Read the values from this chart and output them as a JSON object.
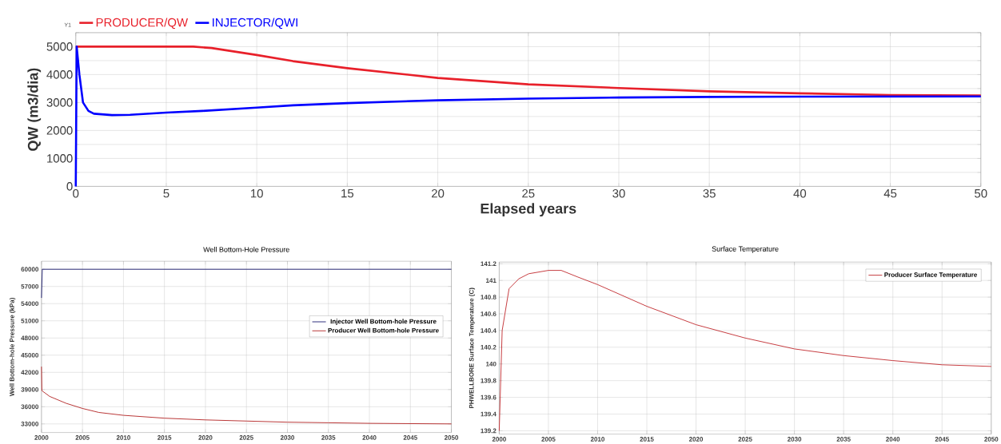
{
  "chart_data": [
    {
      "type": "line",
      "xlabel": "Elapsed years",
      "ylabel": "QW (m3/dia)",
      "annotations": [
        "Y1"
      ],
      "xlim": [
        0,
        50
      ],
      "ylim": [
        0,
        5500
      ],
      "xticks": [
        0,
        5,
        10,
        15,
        20,
        25,
        30,
        35,
        40,
        45,
        50
      ],
      "yticks": [
        0,
        {
          "value": 500,
          "label": null
        },
        1000,
        {
          "value": 1500,
          "label": null
        },
        2000,
        {
          "value": 2500,
          "label": null
        },
        3000,
        {
          "value": 3500,
          "label": null
        },
        4000,
        {
          "value": 4500,
          "label": null
        },
        5000,
        {
          "value": 5500,
          "label": null
        }
      ],
      "grid": true,
      "legend": "top left",
      "series": [
        {
          "name": "PRODUCER/QW",
          "color": "#e8202a",
          "x": [
            0,
            6.5,
            7.5,
            10,
            12,
            15,
            20,
            25,
            30,
            35,
            40,
            45,
            50
          ],
          "values": [
            5000,
            5000,
            4950,
            4700,
            4480,
            4230,
            3880,
            3650,
            3520,
            3400,
            3330,
            3270,
            3250
          ]
        },
        {
          "name": "INJECTOR/QWI",
          "color": "#0000ff",
          "x": [
            0,
            0.05,
            0.2,
            0.4,
            0.7,
            1,
            2,
            3,
            5,
            7,
            10,
            12,
            15,
            20,
            25,
            30,
            35,
            40,
            50
          ],
          "values": [
            0,
            5000,
            4000,
            3000,
            2700,
            2600,
            2550,
            2560,
            2640,
            2700,
            2820,
            2900,
            2980,
            3080,
            3140,
            3180,
            3200,
            3210,
            3220
          ]
        }
      ]
    },
    {
      "type": "line",
      "title": "Well Bottom-Hole Pressure",
      "ylabel": "Well Bottom-hole Pressure (kPa)",
      "xlim": [
        2000,
        2050
      ],
      "ylim": [
        31500,
        61400
      ],
      "xticks": [
        2000,
        2005,
        2010,
        2015,
        2020,
        2025,
        2030,
        2035,
        2040,
        2045,
        2050
      ],
      "yticks": [
        33000,
        36000,
        39000,
        42000,
        45000,
        48000,
        51000,
        54000,
        57000,
        60000
      ],
      "grid": true,
      "legend": "right",
      "series": [
        {
          "name": "Injector Well Bottom-hole Pressure",
          "color": "#1a1a6e",
          "x": [
            2000,
            2000.1,
            2050
          ],
          "values": [
            55000,
            60000,
            60000
          ]
        },
        {
          "name": "Producer Well Bottom-hole Pressure",
          "color": "#b22222",
          "x": [
            2000,
            2000.05,
            2001,
            2003,
            2005,
            2007,
            2010,
            2015,
            2020,
            2025,
            2030,
            2035,
            2040,
            2050
          ],
          "values": [
            43000,
            38800,
            37800,
            36600,
            35700,
            35000,
            34500,
            34000,
            33700,
            33500,
            33300,
            33200,
            33100,
            33000
          ]
        }
      ]
    },
    {
      "type": "line",
      "title": "Surface Temperature",
      "ylabel": "PHWELLBORE Surface Temperature (C)",
      "xlim": [
        2000,
        2050
      ],
      "ylim": [
        139.16,
        141.22
      ],
      "xticks": [
        2000,
        2005,
        2010,
        2015,
        2020,
        2025,
        2030,
        2035,
        2040,
        2045,
        2050
      ],
      "yticks": [
        139.2,
        139.4,
        139.6,
        139.8,
        140,
        140.2,
        140.4,
        140.6,
        140.8,
        141,
        141.2
      ],
      "grid": true,
      "legend": "top right",
      "series": [
        {
          "name": "Producer Surface Temperature",
          "color": "#c0282d",
          "x": [
            2000,
            2000.3,
            2001,
            2002,
            2003,
            2005,
            2006.3,
            2008,
            2010,
            2015,
            2020,
            2025,
            2030,
            2035,
            2040,
            2045,
            2050
          ],
          "values": [
            139.2,
            140.4,
            140.9,
            141.02,
            141.08,
            141.12,
            141.12,
            141.04,
            140.95,
            140.69,
            140.47,
            140.31,
            140.18,
            140.1,
            140.04,
            139.99,
            139.97
          ]
        }
      ]
    }
  ]
}
